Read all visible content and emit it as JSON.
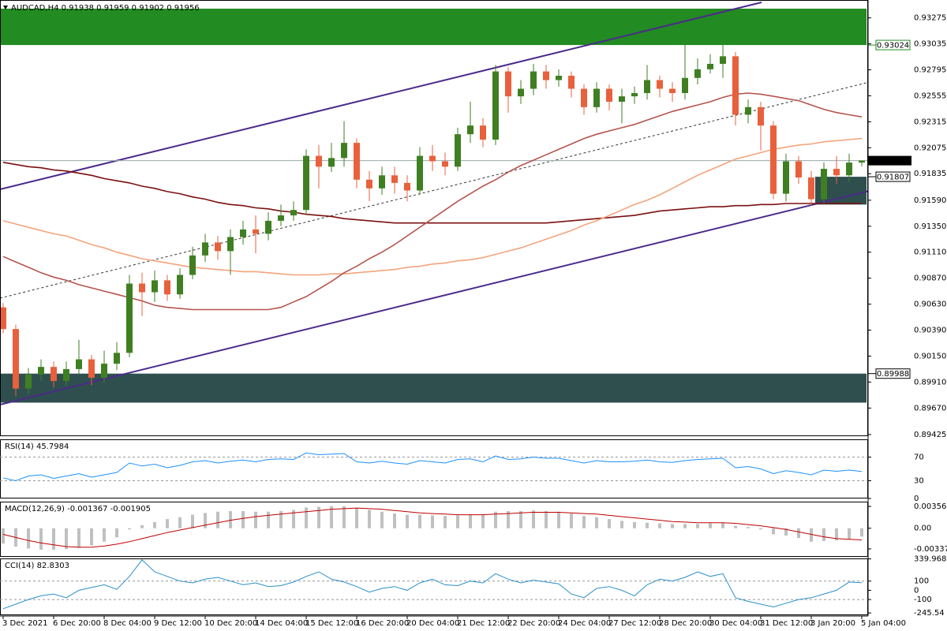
{
  "chart_data": [
    {
      "type": "candlestick",
      "title": "AUDCAD,H4  0.91938 0.91959 0.91902 0.91956",
      "categories": [
        "3 Dec 2021",
        null,
        null,
        null,
        "6 Dec 20:00",
        null,
        null,
        null,
        "8 Dec 04:00",
        null,
        null,
        null,
        "9 Dec 12:00",
        null,
        null,
        null,
        "10 Dec 20:00",
        null,
        null,
        null,
        "14 Dec 04:00",
        null,
        null,
        null,
        "15 Dec 12:00",
        null,
        null,
        null,
        "16 Dec 20:00",
        null,
        null,
        null,
        "20 Dec 04:00",
        null,
        null,
        null,
        "21 Dec 12:00",
        null,
        null,
        null,
        "22 Dec 20:00",
        null,
        null,
        null,
        "24 Dec 04:00",
        null,
        null,
        null,
        "27 Dec 12:00",
        null,
        null,
        null,
        "28 Dec 20:00",
        null,
        null,
        null,
        "30 Dec 04:00",
        null,
        null,
        null,
        "31 Dec 12:00",
        null,
        null,
        null,
        "3 Jan 20:00",
        null,
        null,
        null,
        "5 Jan 04:00"
      ],
      "open": [
        0.906,
        0.904,
        0.8985,
        0.8998,
        0.9005,
        0.8992,
        0.9003,
        0.9012,
        0.8995,
        0.9008,
        0.9018,
        0.9082,
        0.9074,
        0.9085,
        0.9072,
        0.909,
        0.9108,
        0.912,
        0.9112,
        0.9125,
        0.9132,
        0.9128,
        0.914,
        0.9145,
        0.915,
        0.92,
        0.919,
        0.9198,
        0.9212,
        0.9178,
        0.917,
        0.9182,
        0.9175,
        0.9168,
        0.92,
        0.9195,
        0.919,
        0.922,
        0.9228,
        0.9215,
        0.9278,
        0.9255,
        0.9262,
        0.9278,
        0.927,
        0.9274,
        0.9262,
        0.9245,
        0.9262,
        0.925,
        0.9255,
        0.9258,
        0.927,
        0.9262,
        0.9258,
        0.9272,
        0.928,
        0.9285,
        0.9292,
        0.9238,
        0.9245,
        0.9228,
        0.9165,
        0.9195,
        0.918,
        0.916,
        0.9188,
        0.9182,
        0.91938
      ],
      "high": [
        0.9064,
        0.9044,
        0.9004,
        0.9012,
        0.901,
        0.901,
        0.903,
        0.9016,
        0.902,
        0.9028,
        0.909,
        0.9092,
        0.9094,
        0.909,
        0.9096,
        0.9116,
        0.9128,
        0.9126,
        0.9132,
        0.914,
        0.9145,
        0.9148,
        0.9155,
        0.9158,
        0.9206,
        0.921,
        0.9212,
        0.9232,
        0.9216,
        0.9186,
        0.919,
        0.919,
        0.9182,
        0.9208,
        0.921,
        0.9203,
        0.9226,
        0.925,
        0.9235,
        0.9284,
        0.9282,
        0.927,
        0.9285,
        0.9284,
        0.928,
        0.9278,
        0.9266,
        0.9268,
        0.9266,
        0.9262,
        0.9264,
        0.9284,
        0.9274,
        0.9268,
        0.9306,
        0.929,
        0.9294,
        0.9306,
        0.9296,
        0.9252,
        0.925,
        0.9232,
        0.9202,
        0.92,
        0.9186,
        0.9194,
        0.92,
        0.9202,
        0.91959
      ],
      "low": [
        0.9036,
        0.8978,
        0.898,
        0.8992,
        0.8986,
        0.8988,
        0.8998,
        0.8988,
        0.899,
        0.9002,
        0.9014,
        0.9052,
        0.9065,
        0.9066,
        0.9068,
        0.9086,
        0.9102,
        0.9104,
        0.909,
        0.9118,
        0.911,
        0.9122,
        0.9135,
        0.914,
        0.9146,
        0.917,
        0.9185,
        0.919,
        0.917,
        0.9158,
        0.9164,
        0.9165,
        0.9158,
        0.9164,
        0.9186,
        0.9182,
        0.9186,
        0.9212,
        0.9208,
        0.921,
        0.924,
        0.9248,
        0.9256,
        0.9262,
        0.9264,
        0.9254,
        0.9238,
        0.924,
        0.9242,
        0.923,
        0.9248,
        0.9252,
        0.9254,
        0.925,
        0.9252,
        0.9266,
        0.9276,
        0.9272,
        0.9228,
        0.923,
        0.9205,
        0.916,
        0.9158,
        0.9174,
        0.9154,
        0.9156,
        0.9174,
        0.9176,
        0.91902
      ],
      "close": [
        0.904,
        0.8985,
        0.8998,
        0.9005,
        0.8992,
        0.9003,
        0.9012,
        0.8995,
        0.9008,
        0.9018,
        0.9082,
        0.9074,
        0.9085,
        0.9072,
        0.909,
        0.9108,
        0.912,
        0.9112,
        0.9125,
        0.9132,
        0.9128,
        0.914,
        0.9145,
        0.915,
        0.92,
        0.919,
        0.9198,
        0.9212,
        0.9178,
        0.917,
        0.9182,
        0.9175,
        0.9168,
        0.92,
        0.9195,
        0.919,
        0.922,
        0.9228,
        0.9215,
        0.9278,
        0.9255,
        0.9262,
        0.9278,
        0.927,
        0.9274,
        0.9262,
        0.9245,
        0.9262,
        0.925,
        0.9255,
        0.9258,
        0.927,
        0.9262,
        0.9258,
        0.9272,
        0.928,
        0.9285,
        0.9292,
        0.9238,
        0.9245,
        0.9228,
        0.9165,
        0.9195,
        0.918,
        0.916,
        0.9188,
        0.9182,
        0.91938,
        0.91956
      ],
      "up_color": "#3f7f22",
      "down_color": "#e8603c",
      "series": [
        {
          "color": "#7b1010",
          "values": [
            0.9194,
            0.9192,
            0.919,
            0.9189,
            0.9187,
            0.9186,
            0.9184,
            0.9182,
            0.9179,
            0.9177,
            0.9175,
            0.9172,
            0.917,
            0.9167,
            0.9165,
            0.9162,
            0.916,
            0.9157,
            0.9155,
            0.9154,
            0.9152,
            0.9151,
            0.9149,
            0.9148,
            0.9146,
            0.9145,
            0.9144,
            0.9142,
            0.9141,
            0.914,
            0.9139,
            0.9138,
            0.9138,
            0.9138,
            0.9138,
            0.9138,
            0.9138,
            0.9138,
            0.9138,
            0.9138,
            0.9138,
            0.9138,
            0.9138,
            0.9138,
            0.9139,
            0.914,
            0.9141,
            0.9142,
            0.9143,
            0.9144,
            0.9145,
            0.9147,
            0.9149,
            0.915,
            0.9151,
            0.9152,
            0.9153,
            0.9153,
            0.9154,
            0.9154,
            0.9155,
            0.9155,
            0.9156,
            0.9156,
            0.9156,
            0.9156,
            0.9156,
            0.9156,
            0.9156
          ]
        },
        {
          "color": "#f4a47c",
          "values": [
            0.914,
            0.9137,
            0.9134,
            0.9131,
            0.9128,
            0.9126,
            0.9122,
            0.9118,
            0.9115,
            0.9111,
            0.9108,
            0.9105,
            0.9103,
            0.9101,
            0.9099,
            0.9097,
            0.9096,
            0.9095,
            0.9094,
            0.9093,
            0.9093,
            0.9092,
            0.9091,
            0.909,
            0.909,
            0.909,
            0.9091,
            0.9091,
            0.9092,
            0.9093,
            0.9094,
            0.9095,
            0.9097,
            0.9098,
            0.91,
            0.9101,
            0.9103,
            0.9104,
            0.9106,
            0.9109,
            0.9112,
            0.9115,
            0.9119,
            0.9123,
            0.9127,
            0.9131,
            0.9136,
            0.914,
            0.9145,
            0.915,
            0.9155,
            0.9159,
            0.9164,
            0.917,
            0.9176,
            0.9182,
            0.9187,
            0.9192,
            0.9197,
            0.92,
            0.9203,
            0.9206,
            0.9208,
            0.921,
            0.9211,
            0.9213,
            0.9214,
            0.9215,
            0.9216
          ]
        },
        {
          "color": "#b5554e",
          "values": [
            0.9107,
            0.9102,
            0.9097,
            0.9092,
            0.9088,
            0.9085,
            0.9081,
            0.9078,
            0.9075,
            0.9072,
            0.9069,
            0.9066,
            0.9062,
            0.906,
            0.9059,
            0.9058,
            0.9058,
            0.9058,
            0.9058,
            0.9058,
            0.9058,
            0.9058,
            0.906,
            0.9065,
            0.907,
            0.9077,
            0.9084,
            0.9092,
            0.9098,
            0.9105,
            0.9111,
            0.9118,
            0.9126,
            0.9134,
            0.9142,
            0.915,
            0.9158,
            0.9165,
            0.9172,
            0.9178,
            0.9185,
            0.9191,
            0.9196,
            0.9201,
            0.9206,
            0.9211,
            0.9216,
            0.922,
            0.9223,
            0.9226,
            0.9229,
            0.9233,
            0.9237,
            0.9241,
            0.9244,
            0.9247,
            0.925,
            0.9254,
            0.9257,
            0.9258,
            0.9257,
            0.9255,
            0.9253,
            0.9251,
            0.9247,
            0.9243,
            0.924,
            0.9238,
            0.9236
          ]
        }
      ],
      "zones": [
        {
          "from": 0.93024,
          "to": 0.9336,
          "color": "#228b22"
        },
        {
          "from": 0.8972,
          "to": 0.89988,
          "color": "#2f4f4f"
        },
        {
          "from": 0.9155,
          "to": 0.91807,
          "color": "#2f4f4f"
        }
      ],
      "price_labels": [
        {
          "value": 0.93024,
          "color": "#228b22"
        },
        {
          "value": 0.91807,
          "color": "#000000"
        },
        {
          "value": 0.89988,
          "color": "#000000"
        }
      ],
      "last_price": 0.91956,
      "ylim": [
        0.8941,
        0.9344
      ],
      "yticks": [
        0.93275,
        0.93035,
        0.92795,
        0.92555,
        0.92315,
        0.92075,
        0.91835,
        {
          "value": 0.9159,
          "label": "0.91590"
        },
        {
          "value": 0.9135,
          "label": "0.91350"
        },
        {
          "value": 0.9111,
          "label": "0.91110"
        },
        {
          "value": 0.9087,
          "label": "0.90870"
        },
        {
          "value": 0.9063,
          "label": "0.90630"
        },
        {
          "value": 0.9039,
          "label": "0.90390"
        },
        {
          "value": 0.9015,
          "label": "0.90150"
        },
        {
          "value": 0.8991,
          "label": "0.89910"
        },
        {
          "value": 0.8967,
          "label": "0.89670"
        },
        0.89425
      ]
    },
    {
      "type": "line",
      "title": "RSI(14) 45.7984",
      "color": "#1e90ff",
      "values": [
        35,
        30,
        38,
        40,
        34,
        38,
        42,
        36,
        40,
        44,
        60,
        55,
        58,
        52,
        56,
        62,
        64,
        60,
        63,
        65,
        62,
        66,
        67,
        66,
        77,
        74,
        75,
        76,
        62,
        60,
        63,
        60,
        58,
        64,
        62,
        60,
        66,
        67,
        62,
        72,
        66,
        67,
        70,
        68,
        68,
        64,
        60,
        64,
        62,
        62,
        63,
        65,
        62,
        61,
        64,
        66,
        67,
        68,
        52,
        54,
        50,
        42,
        47,
        44,
        40,
        48,
        46,
        48,
        45.7984
      ],
      "ylim": [
        0,
        100
      ],
      "yticks": [
        70,
        30,
        0
      ],
      "levels": [
        70,
        30
      ]
    },
    {
      "type": "macd",
      "title": "MACD(12,26,9) -0.001367 -0.001905",
      "series": [
        {
          "type": "bar",
          "color": "#c0c0c0",
          "values": [
            -0.0025,
            -0.003,
            -0.0033,
            -0.0035,
            -0.0035,
            -0.0034,
            -0.0032,
            -0.0028,
            -0.0022,
            -0.0015,
            -0.0002,
            0.0005,
            0.001,
            0.0015,
            0.0018,
            0.0022,
            0.0025,
            0.0027,
            0.0028,
            0.0028,
            0.0027,
            0.0027,
            0.0028,
            0.003,
            0.0034,
            0.0035,
            0.0036,
            0.0036,
            0.0033,
            0.003,
            0.0027,
            0.0024,
            0.0022,
            0.0022,
            0.0021,
            0.002,
            0.0021,
            0.0022,
            0.0022,
            0.0027,
            0.0028,
            0.0028,
            0.0029,
            0.0028,
            0.0027,
            0.0024,
            0.002,
            0.0018,
            0.0015,
            0.0012,
            0.001,
            0.0009,
            0.0008,
            0.0007,
            0.0007,
            0.0007,
            0.0008,
            0.0009,
            0.0004,
            0.0002,
            -0.0002,
            -0.001,
            -0.0012,
            -0.0016,
            -0.0022,
            -0.0021,
            -0.002,
            -0.0018,
            -0.001367
          ]
        },
        {
          "type": "line",
          "color": "#c00000",
          "values": [
            -0.001,
            -0.0015,
            -0.002,
            -0.0024,
            -0.0027,
            -0.003,
            -0.0031,
            -0.0031,
            -0.0029,
            -0.0026,
            -0.0022,
            -0.0017,
            -0.0012,
            -0.0007,
            -0.0003,
            0.0001,
            0.0005,
            0.0009,
            0.0013,
            0.0016,
            0.0019,
            0.0021,
            0.0023,
            0.0025,
            0.0027,
            0.0029,
            0.0031,
            0.0032,
            0.0033,
            0.0032,
            0.0031,
            0.0029,
            0.0027,
            0.0025,
            0.0024,
            0.0023,
            0.0022,
            0.0022,
            0.0022,
            0.0023,
            0.0024,
            0.0025,
            0.0026,
            0.0026,
            0.0026,
            0.0025,
            0.0024,
            0.0023,
            0.0021,
            0.0019,
            0.0017,
            0.0015,
            0.0013,
            0.0011,
            0.001,
            0.0009,
            0.0009,
            0.0009,
            0.0008,
            0.0006,
            0.0004,
            0.0001,
            -0.0002,
            -0.0006,
            -0.001,
            -0.0014,
            -0.0017,
            -0.0018,
            -0.001905
          ]
        }
      ],
      "ylim": [
        -0.00467,
        0.00434
      ],
      "yticks": [
        0.003563,
        {
          "value": 0,
          "label": "0.00"
        },
        -0.003371
      ]
    },
    {
      "type": "line",
      "title": "CCI(14) 82.8303",
      "color": "#2a8fc8",
      "values": [
        -200,
        -150,
        -100,
        -60,
        -40,
        -80,
        0,
        30,
        60,
        10,
        150,
        330,
        200,
        150,
        100,
        80,
        120,
        140,
        100,
        60,
        80,
        40,
        50,
        90,
        150,
        200,
        120,
        90,
        40,
        -20,
        20,
        40,
        0,
        80,
        120,
        60,
        50,
        100,
        80,
        180,
        120,
        80,
        110,
        90,
        70,
        -40,
        -80,
        20,
        40,
        0,
        -60,
        60,
        120,
        100,
        140,
        200,
        150,
        180,
        -80,
        -120,
        -150,
        -180,
        -140,
        -100,
        -80,
        -40,
        0,
        90,
        82.8303
      ],
      "ylim": [
        -270,
        345
      ],
      "yticks": [
        339.9688,
        100,
        0,
        -100,
        -245.54
      ],
      "levels": [
        100,
        -100
      ]
    }
  ]
}
